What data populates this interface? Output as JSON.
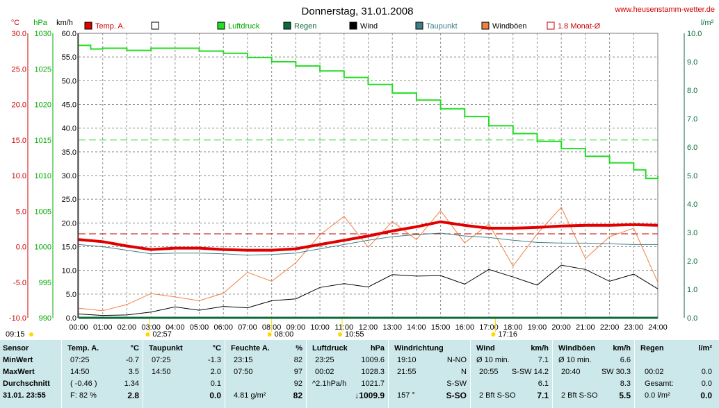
{
  "title": "Donnerstag, 31.01.2008",
  "website": "www.heusenstamm-wetter.de",
  "axes": {
    "celsius_unit": "°C",
    "hpa_unit": "hPa",
    "kmh_unit": "km/h",
    "rain_unit": "l/m²",
    "celsius_ticks": [
      "30.0",
      "25.0",
      "20.0",
      "15.0",
      "10.0",
      "5.0",
      "0.0",
      "-5.0",
      "-10.0"
    ],
    "hpa_ticks": [
      "1030",
      "1025",
      "1020",
      "1015",
      "1010",
      "1005",
      "1000",
      "995",
      "990"
    ],
    "kmh_ticks": [
      "60.0",
      "55.0",
      "50.0",
      "45.0",
      "40.0",
      "35.0",
      "30.0",
      "25.0",
      "20.0",
      "15.0",
      "10.0",
      "5.0",
      "0.0"
    ],
    "rain_ticks": [
      "10.0",
      "9.0",
      "8.0",
      "7.0",
      "6.0",
      "5.0",
      "4.0",
      "3.0",
      "2.0",
      "1.0",
      "0.0"
    ],
    "time_ticks": [
      "00:00",
      "01:00",
      "02:00",
      "03:00",
      "04:00",
      "05:00",
      "06:00",
      "07:00",
      "08:00",
      "09:00",
      "10:00",
      "11:00",
      "12:00",
      "13:00",
      "14:00",
      "15:00",
      "16:00",
      "17:00",
      "18:00",
      "19:00",
      "20:00",
      "21:00",
      "22:00",
      "23:00",
      "24:00"
    ],
    "event_markers": [
      {
        "label": "09:15",
        "hour": 0.0
      },
      {
        "label": "02:57",
        "hour": 2.95
      },
      {
        "label": "08:00",
        "hour": 8.0
      },
      {
        "label": "10:55",
        "hour": 10.92
      },
      {
        "label": "17:16",
        "hour": 17.27
      }
    ]
  },
  "legend": [
    {
      "name": "Temp. A.",
      "color": "#e00000"
    },
    {
      "name": "",
      "color": "#ffffff"
    },
    {
      "name": "Luftdruck",
      "color": "#22dd22"
    },
    {
      "name": "Regen",
      "color": "#0a6b3a"
    },
    {
      "name": "Wind",
      "color": "#000000"
    },
    {
      "name": "Taupunkt",
      "color": "#3e7f86"
    },
    {
      "name": "Windböen",
      "color": "#f08040"
    },
    {
      "name": "1.8 Monat-Ø",
      "color": "#c00000"
    }
  ],
  "chart_data": {
    "type": "line",
    "x_unit": "hour",
    "xlim": [
      0,
      24
    ],
    "temp_ylim": [
      -10,
      30
    ],
    "pressure_ylim": [
      990,
      1030
    ],
    "wind_ylim": [
      0,
      60
    ],
    "rain_ylim": [
      0,
      10
    ],
    "monthly_avg_temp": 1.8,
    "monthly_avg_pressure": 1015,
    "series": [
      {
        "name": "Temp. A.",
        "x": [
          0,
          1,
          2,
          3,
          4,
          5,
          6,
          7,
          8,
          9,
          10,
          11,
          12,
          13,
          14,
          15,
          16,
          17,
          18,
          19,
          20,
          21,
          22,
          23,
          24
        ],
        "y": [
          1.0,
          0.7,
          0.1,
          -0.4,
          -0.2,
          -0.2,
          -0.4,
          -0.5,
          -0.5,
          -0.3,
          0.3,
          0.9,
          1.5,
          2.2,
          2.8,
          3.5,
          3.0,
          2.6,
          2.6,
          2.7,
          2.9,
          3.0,
          3.0,
          3.1,
          3.0
        ]
      },
      {
        "name": "Taupunkt",
        "x": [
          0,
          1,
          2,
          3,
          4,
          5,
          6,
          7,
          8,
          9,
          10,
          11,
          12,
          13,
          14,
          15,
          16,
          17,
          18,
          19,
          20,
          21,
          22,
          23,
          24
        ],
        "y": [
          0.3,
          0.0,
          -0.5,
          -1.0,
          -0.9,
          -0.9,
          -1.0,
          -1.2,
          -1.1,
          -0.9,
          -0.3,
          0.3,
          0.9,
          1.4,
          1.7,
          1.9,
          1.5,
          1.3,
          0.9,
          0.6,
          0.5,
          0.5,
          0.4,
          0.3,
          0.3
        ]
      },
      {
        "name": "Luftdruck",
        "x": [
          0,
          0.5,
          1,
          2,
          3,
          4,
          5,
          6,
          7,
          8,
          9,
          10,
          11,
          12,
          13,
          14,
          15,
          16,
          17,
          18,
          19,
          20,
          21,
          22,
          23,
          23.5,
          24
        ],
        "y": [
          1028.3,
          1027.8,
          1027.9,
          1027.6,
          1027.9,
          1027.9,
          1027.5,
          1027.2,
          1026.6,
          1026.0,
          1025.4,
          1024.7,
          1023.8,
          1022.8,
          1021.6,
          1020.6,
          1019.4,
          1018.3,
          1017.0,
          1015.9,
          1014.8,
          1013.8,
          1012.7,
          1011.8,
          1010.8,
          1009.6,
          1009.9
        ]
      },
      {
        "name": "Wind",
        "x": [
          0,
          1,
          2,
          3,
          4,
          5,
          6,
          7,
          8,
          9,
          10,
          11,
          12,
          13,
          14,
          15,
          16,
          17,
          18,
          19,
          20,
          21,
          22,
          23,
          24
        ],
        "y": [
          0.8,
          0.5,
          0.6,
          1.2,
          2.3,
          1.6,
          2.4,
          2.1,
          3.6,
          4.0,
          6.4,
          7.2,
          6.5,
          9.1,
          8.8,
          8.9,
          7.1,
          10.2,
          8.6,
          6.9,
          11.1,
          10.2,
          7.7,
          9.2,
          6.1
        ]
      },
      {
        "name": "Windböen",
        "x": [
          0,
          1,
          2,
          3,
          4,
          5,
          6,
          7,
          8,
          9,
          10,
          11,
          12,
          13,
          14,
          15,
          16,
          17,
          18,
          19,
          20,
          21,
          22,
          23,
          24
        ],
        "y": [
          2.0,
          1.5,
          2.8,
          5.1,
          4.4,
          3.6,
          5.2,
          9.6,
          7.7,
          11.6,
          17.5,
          21.4,
          14.9,
          20.3,
          16.5,
          22.6,
          15.8,
          19.8,
          10.9,
          17.7,
          23.3,
          12.5,
          17.1,
          18.9,
          7.5
        ]
      },
      {
        "name": "Regen",
        "x": [
          0,
          24
        ],
        "y": [
          0.0,
          0.0
        ]
      }
    ]
  },
  "table": {
    "labels": {
      "sensor": "Sensor",
      "min": "MinWert",
      "max": "MaxWert",
      "avg": "Durchschnitt",
      "now": "31.01. 23:55"
    },
    "temp": {
      "head": "Temp. A.",
      "unit": "°C",
      "min_t": "07:25",
      "min_v": "-0.7",
      "max_t": "14:50",
      "max_v": "3.5",
      "avg_t": "( -0.46 )",
      "avg_v": "1.34",
      "now_t": "F: 82 %",
      "now_v": "2.8"
    },
    "dew": {
      "head": "Taupunkt",
      "unit": "°C",
      "min_t": "07:25",
      "min_v": "-1.3",
      "max_t": "14:50",
      "max_v": "2.0",
      "avg_v": "0.1",
      "now_v": "0.0"
    },
    "hum": {
      "head": "Feuchte A.",
      "unit": "%",
      "min_t": "23:15",
      "min_v": "82",
      "max_t": "07:50",
      "max_v": "97",
      "avg_v": "92",
      "now_t": "4.81 g/m²",
      "now_v": "82"
    },
    "press": {
      "head": "Luftdruck",
      "unit": "hPa",
      "min_t": "23:25",
      "min_v": "1009.6",
      "max_t": "00:02",
      "max_v": "1028.3",
      "avg_t": "^2.1hPa/h",
      "avg_v": "1021.7",
      "now_v": "↓1009.9"
    },
    "dir": {
      "head": "Windrichtung",
      "min_t": "19:10",
      "min_v": "N-NO",
      "max_t": "21:55",
      "max_v": "N",
      "avg_v": "S-SW",
      "now_t": "157 °",
      "now_v": "S-SO"
    },
    "wind": {
      "head": "Wind",
      "unit": "km/h",
      "min_t": "Ø 10 min.",
      "min_v": "7.1",
      "max_t": "20:55",
      "max_v": "S-SW 14.2",
      "avg_v": "6.1",
      "now_t": "2 Bft S-SO",
      "now_v": "7.1"
    },
    "gust": {
      "head": "Windböen",
      "unit": "km/h",
      "min_t": "Ø 10 min.",
      "min_v": "6.6",
      "max_t": "20:40",
      "max_v": "SW 30.3",
      "avg_v": "8.3",
      "now_t": "2 Bft S-SO",
      "now_v": "5.5"
    },
    "rain": {
      "head": "Regen",
      "unit": "l/m²",
      "max_t": "00:02",
      "max_v": "0.0",
      "avg_t": "Gesamt:",
      "avg_v": "0.0",
      "now_t": "0.0 l/m²",
      "now_v": "0.0"
    }
  }
}
